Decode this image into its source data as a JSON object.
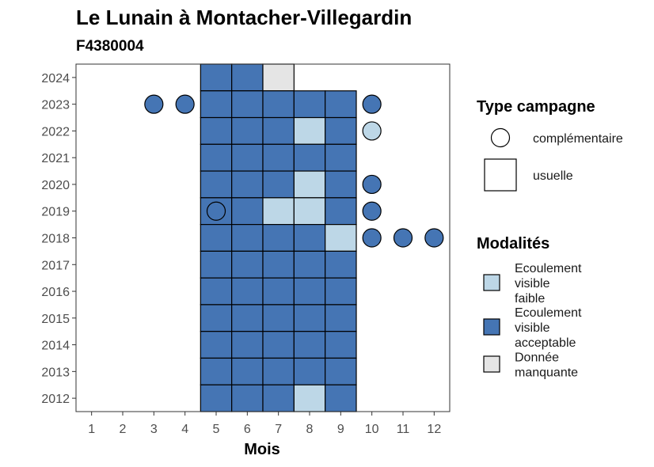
{
  "chart_data": {
    "type": "heatmap",
    "title": "Le Lunain à Montacher-Villegardin",
    "subtitle": "F4380004",
    "xlabel": "Mois",
    "ylabel": "",
    "x_ticks": [
      1,
      2,
      3,
      4,
      5,
      6,
      7,
      8,
      9,
      10,
      11,
      12
    ],
    "y_ticks": [
      2012,
      2013,
      2014,
      2015,
      2016,
      2017,
      2018,
      2019,
      2020,
      2021,
      2022,
      2023,
      2024
    ],
    "xlim": [
      0.5,
      12.5
    ],
    "ylim": [
      2011.5,
      2024.5
    ],
    "colors": {
      "Ecoulement visible faible": "#bdd7e7",
      "Ecoulement visible acceptable": "#4575b4",
      "Donnée manquante": "#e5e5e5"
    },
    "legends": {
      "type_title": "Type campagne",
      "type_items": [
        {
          "shape": "circle",
          "label": "complémentaire"
        },
        {
          "shape": "square",
          "label": "usuelle"
        }
      ],
      "mod_title": "Modalités",
      "mod_items": [
        {
          "key": "Ecoulement visible faible",
          "lines": [
            "Ecoulement",
            "visible",
            "faible"
          ]
        },
        {
          "key": "Ecoulement visible acceptable",
          "lines": [
            "Ecoulement",
            "visible",
            "acceptable"
          ]
        },
        {
          "key": "Donnée manquante",
          "lines": [
            "Donnée",
            "manquante"
          ]
        }
      ]
    },
    "usuelle": [
      {
        "year": 2024,
        "months": [
          5,
          6,
          7
        ],
        "values": [
          "Ecoulement visible acceptable",
          "Ecoulement visible acceptable",
          "Donnée manquante"
        ]
      },
      {
        "year": 2023,
        "months": [
          5,
          6,
          7,
          8,
          9
        ],
        "values": [
          "Ecoulement visible acceptable",
          "Ecoulement visible acceptable",
          "Ecoulement visible acceptable",
          "Ecoulement visible acceptable",
          "Ecoulement visible acceptable"
        ]
      },
      {
        "year": 2022,
        "months": [
          5,
          6,
          7,
          8,
          9
        ],
        "values": [
          "Ecoulement visible acceptable",
          "Ecoulement visible acceptable",
          "Ecoulement visible acceptable",
          "Ecoulement visible faible",
          "Ecoulement visible acceptable"
        ]
      },
      {
        "year": 2021,
        "months": [
          5,
          6,
          7,
          8,
          9
        ],
        "values": [
          "Ecoulement visible acceptable",
          "Ecoulement visible acceptable",
          "Ecoulement visible acceptable",
          "Ecoulement visible acceptable",
          "Ecoulement visible acceptable"
        ]
      },
      {
        "year": 2020,
        "months": [
          5,
          6,
          7,
          8,
          9
        ],
        "values": [
          "Ecoulement visible acceptable",
          "Ecoulement visible acceptable",
          "Ecoulement visible acceptable",
          "Ecoulement visible faible",
          "Ecoulement visible acceptable"
        ]
      },
      {
        "year": 2019,
        "months": [
          5,
          6,
          7,
          8,
          9
        ],
        "values": [
          "Ecoulement visible acceptable",
          "Ecoulement visible acceptable",
          "Ecoulement visible faible",
          "Ecoulement visible faible",
          "Ecoulement visible acceptable"
        ]
      },
      {
        "year": 2018,
        "months": [
          5,
          6,
          7,
          8,
          9
        ],
        "values": [
          "Ecoulement visible acceptable",
          "Ecoulement visible acceptable",
          "Ecoulement visible acceptable",
          "Ecoulement visible acceptable",
          "Ecoulement visible faible"
        ]
      },
      {
        "year": 2017,
        "months": [
          5,
          6,
          7,
          8,
          9
        ],
        "values": [
          "Ecoulement visible acceptable",
          "Ecoulement visible acceptable",
          "Ecoulement visible acceptable",
          "Ecoulement visible acceptable",
          "Ecoulement visible acceptable"
        ]
      },
      {
        "year": 2016,
        "months": [
          5,
          6,
          7,
          8,
          9
        ],
        "values": [
          "Ecoulement visible acceptable",
          "Ecoulement visible acceptable",
          "Ecoulement visible acceptable",
          "Ecoulement visible acceptable",
          "Ecoulement visible acceptable"
        ]
      },
      {
        "year": 2015,
        "months": [
          5,
          6,
          7,
          8,
          9
        ],
        "values": [
          "Ecoulement visible acceptable",
          "Ecoulement visible acceptable",
          "Ecoulement visible acceptable",
          "Ecoulement visible acceptable",
          "Ecoulement visible acceptable"
        ]
      },
      {
        "year": 2014,
        "months": [
          5,
          6,
          7,
          8,
          9
        ],
        "values": [
          "Ecoulement visible acceptable",
          "Ecoulement visible acceptable",
          "Ecoulement visible acceptable",
          "Ecoulement visible acceptable",
          "Ecoulement visible acceptable"
        ]
      },
      {
        "year": 2013,
        "months": [
          5,
          6,
          7,
          8,
          9
        ],
        "values": [
          "Ecoulement visible acceptable",
          "Ecoulement visible acceptable",
          "Ecoulement visible acceptable",
          "Ecoulement visible acceptable",
          "Ecoulement visible acceptable"
        ]
      },
      {
        "year": 2012,
        "months": [
          5,
          6,
          7,
          8,
          9
        ],
        "values": [
          "Ecoulement visible acceptable",
          "Ecoulement visible acceptable",
          "Ecoulement visible acceptable",
          "Ecoulement visible faible",
          "Ecoulement visible acceptable"
        ]
      }
    ],
    "complementaire": [
      {
        "year": 2023,
        "month": 3,
        "value": "Ecoulement visible acceptable"
      },
      {
        "year": 2023,
        "month": 4,
        "value": "Ecoulement visible acceptable"
      },
      {
        "year": 2023,
        "month": 10,
        "value": "Ecoulement visible acceptable"
      },
      {
        "year": 2022,
        "month": 10,
        "value": "Ecoulement visible faible"
      },
      {
        "year": 2020,
        "month": 10,
        "value": "Ecoulement visible acceptable"
      },
      {
        "year": 2019,
        "month": 5,
        "value": "Ecoulement visible acceptable"
      },
      {
        "year": 2019,
        "month": 10,
        "value": "Ecoulement visible acceptable"
      },
      {
        "year": 2018,
        "month": 10,
        "value": "Ecoulement visible acceptable"
      },
      {
        "year": 2018,
        "month": 11,
        "value": "Ecoulement visible acceptable"
      },
      {
        "year": 2018,
        "month": 12,
        "value": "Ecoulement visible acceptable"
      }
    ]
  }
}
